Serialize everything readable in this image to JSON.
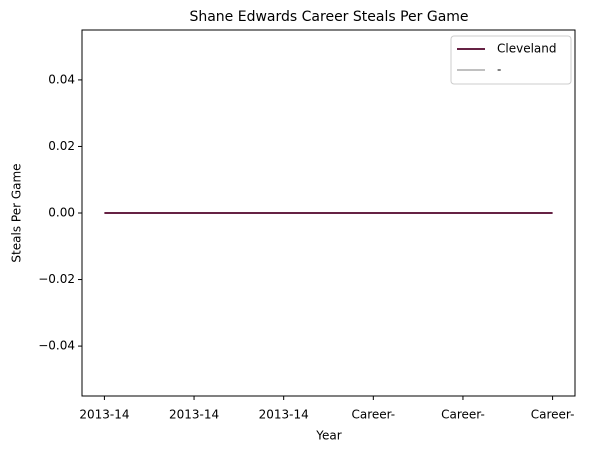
{
  "chart_data": {
    "type": "line",
    "title": "Shane Edwards  Career Steals Per Game",
    "xlabel": "Year",
    "ylabel": "Steals Per Game",
    "categories": [
      "2013-14",
      "2013-14",
      "2013-14",
      "Career-",
      "Career-",
      "Career-"
    ],
    "series": [
      {
        "name": "Cleveland",
        "color": "#662244",
        "values": [
          0,
          0,
          0,
          0,
          0,
          0
        ]
      },
      {
        "name": "-",
        "color": "#c0c0c0",
        "values": [
          0,
          0,
          0,
          0,
          0,
          0
        ]
      }
    ],
    "ylim": [
      -0.055,
      0.055
    ],
    "yticks": [
      {
        "value": -0.04,
        "label": "−0.04"
      },
      {
        "value": -0.02,
        "label": "−0.02"
      },
      {
        "value": 0,
        "label": "0.00"
      },
      0.02,
      0.04
    ],
    "legend": "upper right",
    "grid": false
  }
}
